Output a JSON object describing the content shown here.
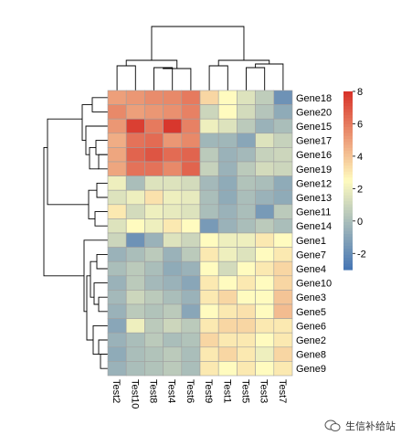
{
  "chart_data": {
    "type": "heatmap",
    "rows": [
      "Gene18",
      "Gene20",
      "Gene15",
      "Gene17",
      "Gene16",
      "Gene19",
      "Gene12",
      "Gene13",
      "Gene11",
      "Gene14",
      "Gene1",
      "Gene7",
      "Gene4",
      "Gene10",
      "Gene3",
      "Gene5",
      "Gene6",
      "Gene2",
      "Gene8",
      "Gene9"
    ],
    "columns": [
      "Test2",
      "Test10",
      "Test8",
      "Test4",
      "Test6",
      "Test9",
      "Test1",
      "Test5",
      "Test3",
      "Test7"
    ],
    "values": [
      [
        5.0,
        5.2,
        5.5,
        5.6,
        6.0,
        3.5,
        2.5,
        1.5,
        0.6,
        -1.8
      ],
      [
        5.6,
        5.0,
        5.2,
        5.4,
        5.8,
        1.0,
        2.5,
        1.2,
        0.3,
        -0.8
      ],
      [
        5.2,
        7.6,
        6.0,
        7.8,
        5.8,
        2.0,
        1.5,
        0.5,
        -0.5,
        0.0
      ],
      [
        4.6,
        6.2,
        6.4,
        5.2,
        5.6,
        -0.3,
        -0.3,
        -1.0,
        1.5,
        0.8
      ],
      [
        4.8,
        6.6,
        7.0,
        6.4,
        6.6,
        0.5,
        -0.5,
        -0.2,
        0.8,
        1.0
      ],
      [
        4.8,
        6.2,
        6.2,
        5.6,
        6.6,
        0.8,
        -0.5,
        0.5,
        1.2,
        1.0
      ],
      [
        2.0,
        0.0,
        1.5,
        1.5,
        1.2,
        -0.2,
        -0.8,
        0.2,
        0.0,
        -0.8
      ],
      [
        1.5,
        2.0,
        3.2,
        2.0,
        1.8,
        0.0,
        -0.8,
        0.0,
        -0.5,
        -0.8
      ],
      [
        3.0,
        1.2,
        2.0,
        1.8,
        1.5,
        0.0,
        -0.5,
        0.0,
        -1.5,
        0.5
      ],
      [
        1.5,
        2.5,
        2.0,
        3.0,
        2.5,
        -1.5,
        -0.5,
        0.0,
        0.5,
        0.0
      ],
      [
        1.0,
        -1.8,
        -0.5,
        1.5,
        1.0,
        2.5,
        2.0,
        2.0,
        3.0,
        2.5
      ],
      [
        -0.5,
        0.0,
        0.5,
        -0.5,
        0.5,
        3.0,
        2.0,
        1.5,
        2.5,
        3.0
      ],
      [
        0.0,
        0.5,
        0.0,
        -0.8,
        -0.5,
        2.5,
        1.2,
        2.5,
        3.0,
        3.5
      ],
      [
        -0.5,
        0.5,
        -0.2,
        -0.5,
        -1.0,
        3.0,
        2.5,
        3.0,
        2.5,
        3.5
      ],
      [
        -0.2,
        1.0,
        0.5,
        0.0,
        -0.5,
        3.0,
        3.5,
        2.5,
        2.5,
        4.0
      ],
      [
        -0.5,
        0.5,
        0.2,
        0.5,
        -1.0,
        2.5,
        3.0,
        3.2,
        2.5,
        4.2
      ],
      [
        -1.0,
        2.0,
        0.5,
        1.0,
        0.5,
        3.0,
        3.5,
        3.5,
        3.0,
        3.0
      ],
      [
        -0.5,
        0.0,
        0.5,
        0.0,
        0.2,
        3.5,
        3.0,
        3.0,
        2.5,
        3.0
      ],
      [
        -0.8,
        0.0,
        0.2,
        0.5,
        0.0,
        3.0,
        3.5,
        3.0,
        2.0,
        3.5
      ],
      [
        -0.5,
        0.0,
        0.2,
        0.5,
        0.0,
        3.0,
        2.5,
        3.0,
        2.5,
        3.0
      ]
    ],
    "color_scale": {
      "min": -3,
      "max": 8,
      "low": "#4575b4",
      "mid": "#fffbbf",
      "high": "#d73027"
    },
    "legend_ticks": [
      8,
      6,
      4,
      2,
      0,
      -2
    ],
    "legend_position": "right",
    "cell_border": "#a0a0a0",
    "dendrograms": [
      "top",
      "left"
    ]
  },
  "watermark": {
    "text": "生信补给站"
  }
}
